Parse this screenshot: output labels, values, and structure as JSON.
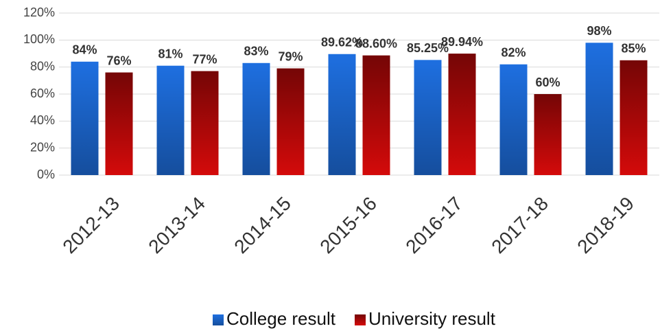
{
  "chart_data": {
    "type": "bar",
    "categories": [
      "2012-13",
      "2013-14",
      "2014-15",
      "2015-16",
      "2016-17",
      "2017-18",
      "2018-19"
    ],
    "series": [
      {
        "name": "College result",
        "color": "#1e6fe0",
        "values": [
          84,
          81,
          83,
          89.62,
          85.25,
          82,
          98
        ],
        "value_labels": [
          "84%",
          "81%",
          "83%",
          "89.62%",
          "85.25%",
          "82%",
          "98%"
        ]
      },
      {
        "name": "University result",
        "color": "#d40a0a",
        "values": [
          76,
          77,
          79,
          88.6,
          89.94,
          60,
          85
        ],
        "value_labels": [
          "76%",
          "77%",
          "79%",
          "88.60%",
          "89.94%",
          "60%",
          "85%"
        ]
      }
    ],
    "ylim": [
      0,
      120
    ],
    "yticks": [
      {
        "value": 0,
        "label": "0%"
      },
      {
        "value": 20,
        "label": "20%"
      },
      {
        "value": 40,
        "label": "40%"
      },
      {
        "value": 60,
        "label": "60%"
      },
      {
        "value": 80,
        "label": "80%"
      },
      {
        "value": 100,
        "label": "100%"
      },
      {
        "value": 120,
        "label": "120%"
      }
    ],
    "grid": true,
    "legend": "bottom"
  }
}
